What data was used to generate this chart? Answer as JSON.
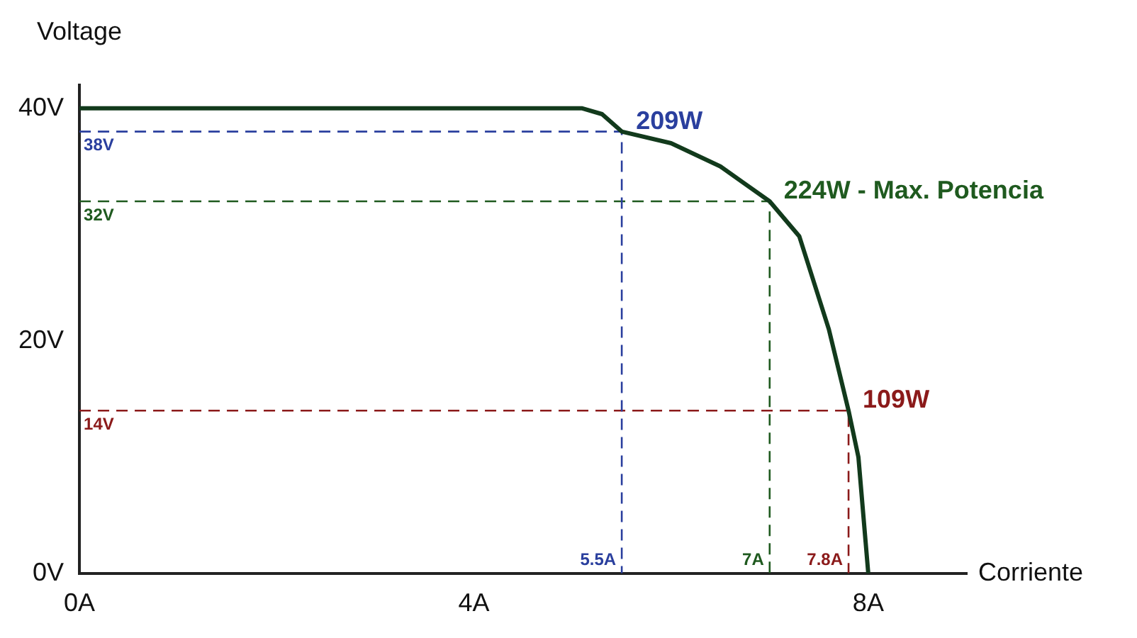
{
  "chart_data": {
    "type": "line",
    "xlabel": "Corriente",
    "ylabel": "Voltage",
    "xlim": [
      0,
      9
    ],
    "ylim": [
      0,
      42
    ],
    "xticks": [
      {
        "value": 0,
        "label": "0A"
      },
      {
        "value": 4,
        "label": "4A"
      },
      {
        "value": 8,
        "label": "8A"
      }
    ],
    "yticks": [
      {
        "value": 0,
        "label": "0V"
      },
      {
        "value": 20,
        "label": "20V"
      },
      {
        "value": 40,
        "label": "40V"
      }
    ],
    "grid": false,
    "legend": false,
    "marker": "none",
    "series": [
      {
        "color": "#123a1c",
        "line_style": "solid",
        "x": [
          0,
          5.1,
          5.3,
          5.5,
          6,
          6.5,
          7,
          7.3,
          7.6,
          7.8,
          7.9,
          8
        ],
        "values": [
          40,
          40,
          39.5,
          38,
          37,
          35,
          32,
          29,
          21,
          14,
          10,
          0
        ]
      },
      {
        "color": "#2a3f9e",
        "line_style": "dashed",
        "x": [
          0,
          5.5,
          5.5
        ],
        "values": [
          38,
          38,
          0
        ]
      },
      {
        "color": "#1f5a1f",
        "line_style": "dashed",
        "x": [
          0,
          7,
          7
        ],
        "values": [
          32,
          32,
          0
        ]
      },
      {
        "color": "#8b1a1a",
        "line_style": "dashed",
        "x": [
          0,
          7.8,
          7.8
        ],
        "values": [
          14,
          14,
          0
        ]
      }
    ],
    "annotations": [
      {
        "text": "38V",
        "x": 0,
        "y": 38
      },
      {
        "text": "209W",
        "x": 5.5,
        "y": 38
      },
      {
        "text": "5.5A",
        "x": 5.5,
        "y": 0
      },
      {
        "text": "32V",
        "x": 0,
        "y": 32
      },
      {
        "text": "224W - Max. Potencia",
        "x": 7,
        "y": 32
      },
      {
        "text": "7A",
        "x": 7,
        "y": 0
      },
      {
        "text": "14V",
        "x": 0,
        "y": 14
      },
      {
        "text": "109W",
        "x": 7.8,
        "y": 14
      },
      {
        "text": "7.8A",
        "x": 7.8,
        "y": 0
      }
    ]
  }
}
